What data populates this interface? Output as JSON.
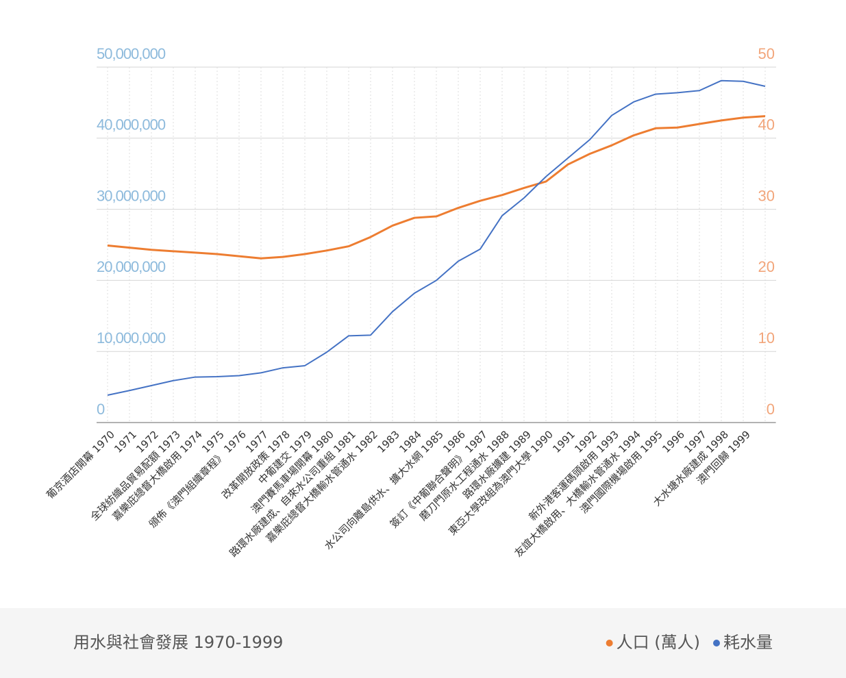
{
  "chart_data": {
    "type": "line",
    "title": "用水與社會發展  1970-1999",
    "categories": [
      "葡京酒店開幕  1970",
      "1971",
      "1972",
      "全球紡織品貿易配額  1973",
      "嘉樂庇總督大橋啟用  1974",
      "1975",
      "頒佈《澳門組織章程》 1976",
      "1977",
      "改革開放政策  1978",
      "中葡建交  1979",
      "澳門賽馬車場開幕  1980",
      "路環水廠建成、自來水公司重組  1981",
      "嘉樂庇總督大橋輸水管通水  1982",
      "1983",
      "1984",
      "水公司向離島供水、擴大水網  1985",
      "1986",
      "簽訂《中葡聯合聲明》 1987",
      "磨刀門原水工程通水  1988",
      "路環水廠擴建  1989",
      "東亞大學改組為澳門大學  1990",
      "1991",
      "1992",
      "新外港客運碼頭啟用  1993",
      "友誼大橋啟用、大橋輸水管通水  1994",
      "澳門國際機場啟用  1995",
      "1996",
      "1997",
      "大水塘水廠建成  1998",
      "澳門回歸  1999",
      null
    ],
    "series": [
      {
        "name": "人口 (萬人)",
        "color": "#ed7d31",
        "axis": "y2",
        "values": [
          24.9,
          24.6,
          24.3,
          24.1,
          23.9,
          23.7,
          23.4,
          23.1,
          23.3,
          23.7,
          24.2,
          24.8,
          26.1,
          27.7,
          28.8,
          29.0,
          30.2,
          31.2,
          32.0,
          33.0,
          33.9,
          36.3,
          37.8,
          39.0,
          40.4,
          41.4,
          41.5,
          42.0,
          42.5,
          42.9,
          43.1
        ]
      },
      {
        "name": "耗水量",
        "color": "#4472c4",
        "values": [
          3850000,
          4500000,
          5200000,
          5900000,
          6400000,
          6450000,
          6600000,
          7000000,
          7700000,
          8000000,
          9900000,
          12200000,
          12300000,
          15600000,
          18200000,
          20000000,
          22700000,
          24400000,
          29100000,
          31600000,
          34600000,
          37200000,
          39800000,
          43200000,
          45100000,
          46200000,
          46400000,
          46700000,
          48100000,
          48000000,
          47300000
        ]
      }
    ],
    "ylim": [
      0,
      50000000
    ],
    "yticks": [
      0,
      {
        "value": 10000000,
        "label": "10,000,000"
      },
      {
        "value": 20000000,
        "label": "20,000,000"
      },
      {
        "value": 30000000,
        "label": "30,000,000"
      },
      {
        "value": 40000000,
        "label": "40,000,000"
      },
      {
        "value": 50000000,
        "label": "50,000,000"
      }
    ],
    "y2lim": [
      0,
      50
    ],
    "y2ticks": [
      0,
      10,
      20,
      30,
      40,
      50
    ],
    "grid": true,
    "legend": "bottom-right"
  }
}
